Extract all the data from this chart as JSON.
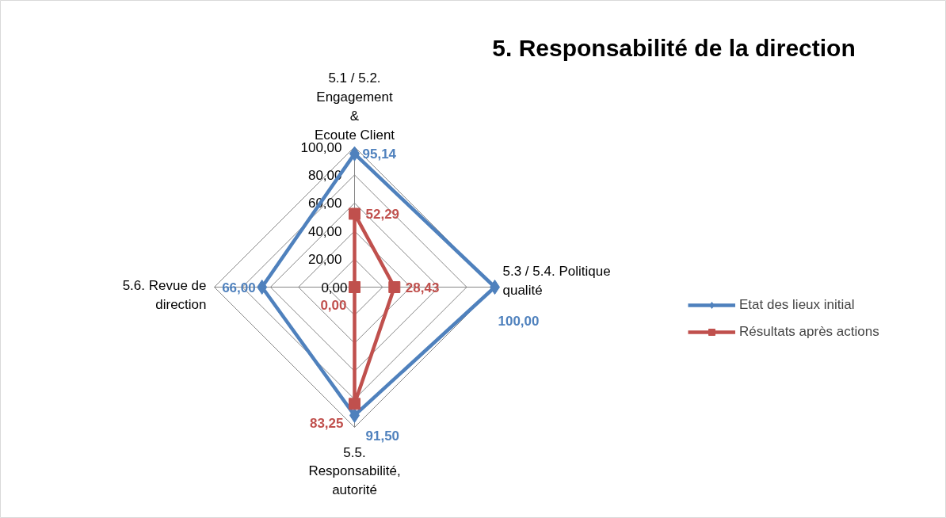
{
  "chart_data": {
    "type": "radar",
    "title": "5. Responsabilité de la direction",
    "categories": [
      "5.1 / 5.2.\nEngagement\n&\nEcoute Client",
      "5.3 / 5.4. Politique\nqualité",
      "5.5.\nResponsabilité,\nautorité",
      "5.6. Revue de\ndirection"
    ],
    "series": [
      {
        "name": "Etat des lieux initial",
        "color": "#4f81bd",
        "marker": "diamond",
        "values": [
          95.14,
          100.0,
          91.5,
          66.0
        ],
        "value_labels": [
          "95,14",
          "100,00",
          "91,50",
          "66,00"
        ]
      },
      {
        "name": "Résultats après actions",
        "color": "#c0504d",
        "marker": "square",
        "values": [
          52.29,
          28.43,
          83.25,
          0.0
        ],
        "value_labels": [
          "52,29",
          "28,43",
          "83,25",
          "0,00"
        ]
      }
    ],
    "ylim": [
      0,
      100
    ],
    "yticks": [
      {
        "value": 0,
        "label": "0,00"
      },
      {
        "value": 20,
        "label": "20,00"
      },
      {
        "value": 40,
        "label": "40,00"
      },
      {
        "value": 60,
        "label": "60,00"
      },
      {
        "value": 80,
        "label": "80,00"
      },
      {
        "value": 100,
        "label": "100,00"
      }
    ],
    "grid": true,
    "legend": "right",
    "line_style": "solid"
  }
}
